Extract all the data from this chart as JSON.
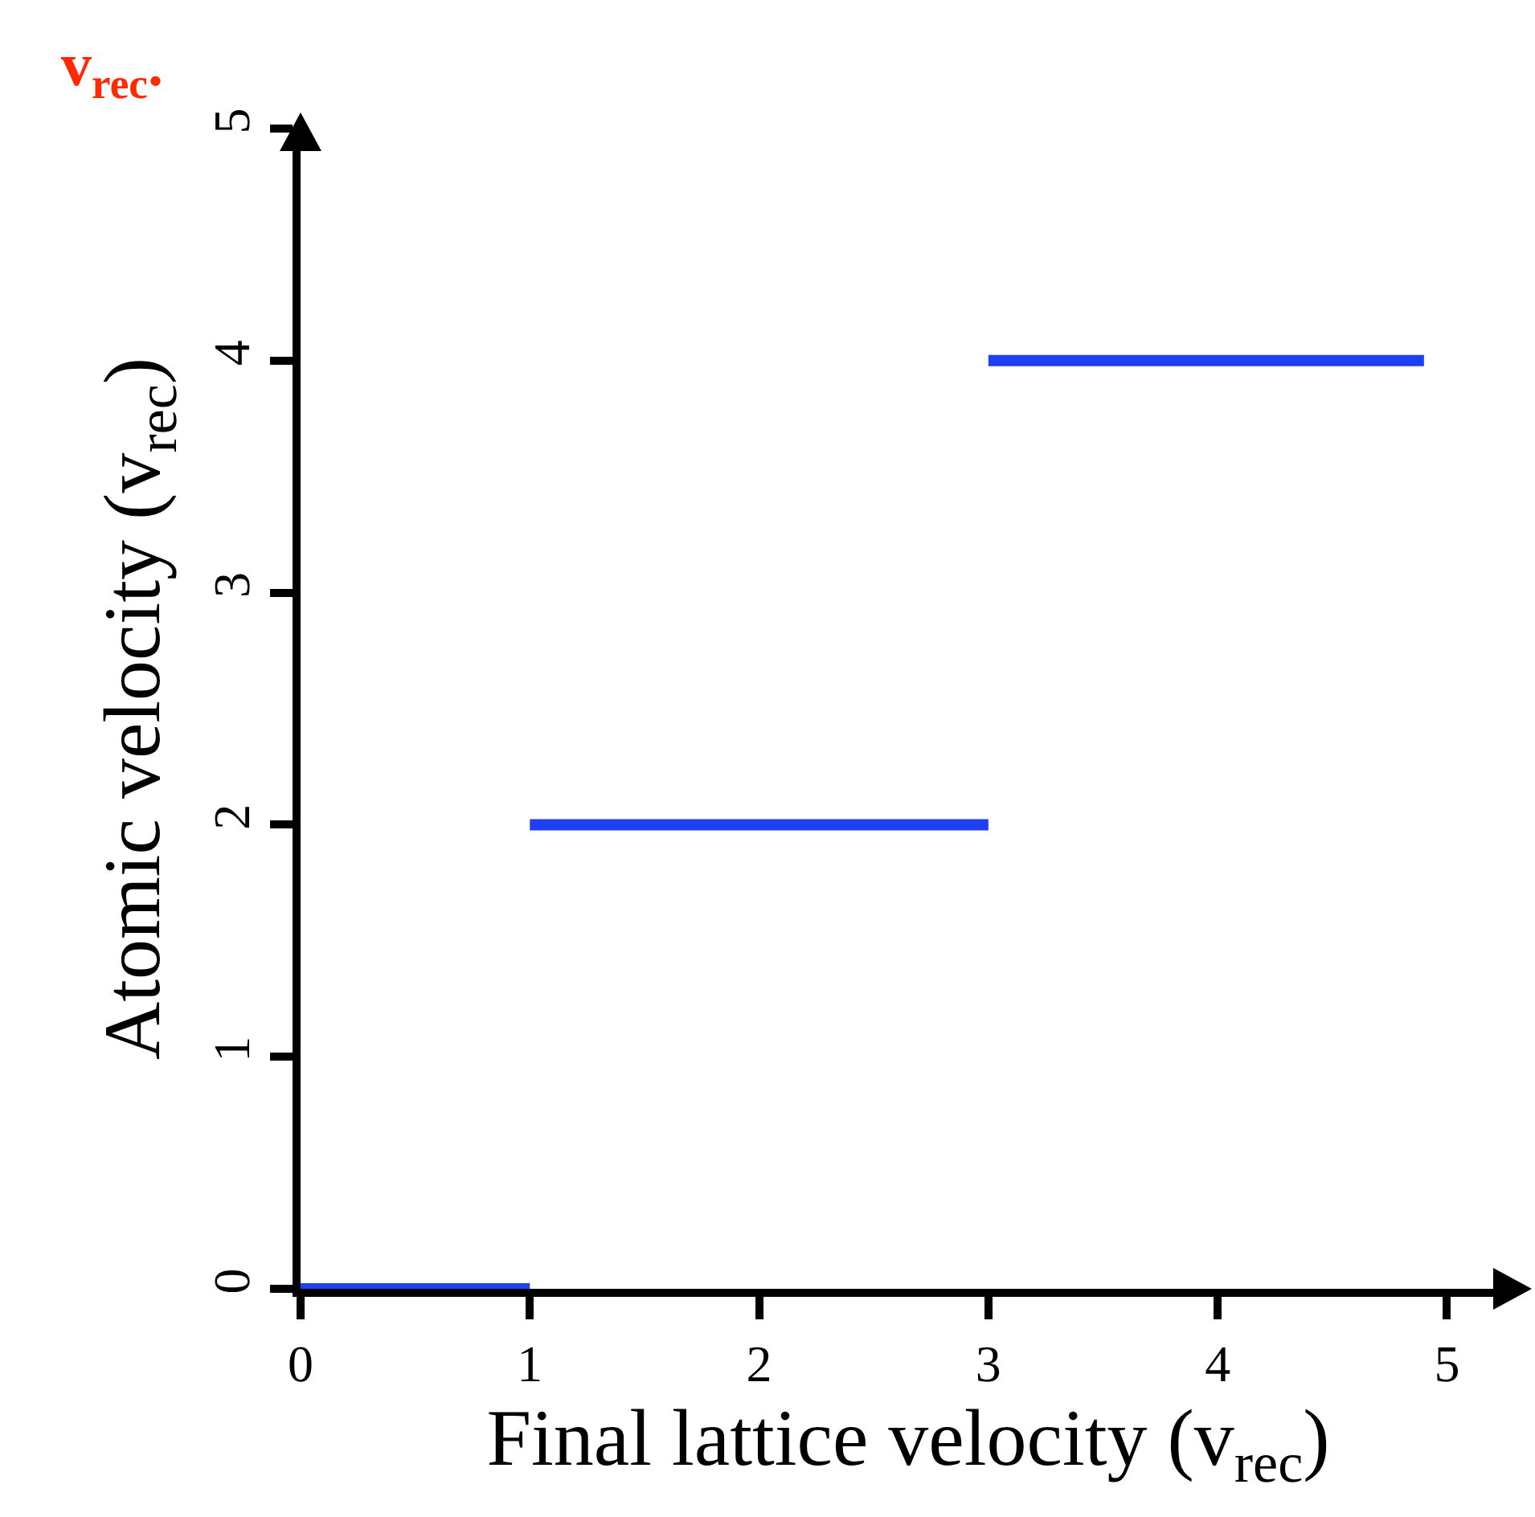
{
  "chart_data": {
    "type": "line",
    "xlabel": "Final lattice velocity (v$_{rec}$)",
    "ylabel": "Atomic velocity (v$_{rec}$)",
    "annotations": [
      "v$_{rec}$."
    ],
    "series": [
      {
        "color": "#1f3ff2",
        "x": [
          0,
          1
        ],
        "values": [
          0,
          0
        ]
      },
      {
        "color": "#1f3ff2",
        "x": [
          1,
          3
        ],
        "values": [
          2,
          2
        ]
      },
      {
        "color": "#1f3ff2",
        "x": [
          3,
          4.9
        ],
        "values": [
          4,
          4
        ]
      }
    ],
    "xlim": [
      0,
      5.3
    ],
    "xticks": [
      0,
      1,
      2,
      3,
      4,
      5
    ],
    "ylim": [
      0,
      5
    ],
    "yticks": [
      0,
      1,
      2,
      3,
      4,
      5
    ],
    "grid": false,
    "marker": "none",
    "line_style": "solid"
  }
}
